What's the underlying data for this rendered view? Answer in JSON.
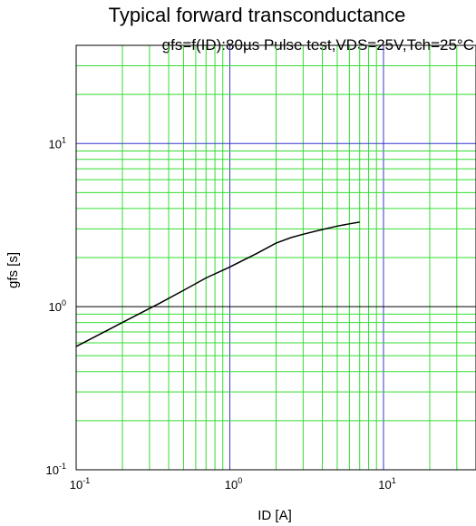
{
  "chart_data": {
    "type": "line",
    "title": "Typical forward transconductance",
    "subtitle": "gfs=f(ID):80µs Pulse test,VDS=25V,Tch=25°C",
    "xlabel": "ID [A]",
    "ylabel": "gfs [s]",
    "x_scale": "log",
    "y_scale": "log",
    "xlim": [
      0.1,
      40
    ],
    "ylim": [
      0.1,
      40
    ],
    "grid": true,
    "x_ticks": [
      {
        "base": "10",
        "exp": "-1",
        "value": 0.1
      },
      {
        "base": "10",
        "exp": "0",
        "value": 1
      },
      {
        "base": "10",
        "exp": "1",
        "value": 10
      }
    ],
    "y_ticks": [
      {
        "base": "10",
        "exp": "-1",
        "value": 0.1
      },
      {
        "base": "10",
        "exp": "0",
        "value": 1
      },
      {
        "base": "10",
        "exp": "1",
        "value": 10
      }
    ],
    "colors": {
      "minor_grid": "#33dd33",
      "major_grid": "#3333cc",
      "curve": "#000000"
    },
    "series": [
      {
        "x": [
          0.1,
          0.2,
          0.35,
          0.5,
          0.7,
          1.0,
          1.5,
          2.0,
          2.5,
          3.0,
          4.0,
          5.0,
          6.0,
          7.0
        ],
        "y": [
          0.57,
          0.8,
          1.05,
          1.26,
          1.5,
          1.75,
          2.12,
          2.45,
          2.65,
          2.78,
          2.97,
          3.12,
          3.22,
          3.3
        ]
      }
    ]
  }
}
